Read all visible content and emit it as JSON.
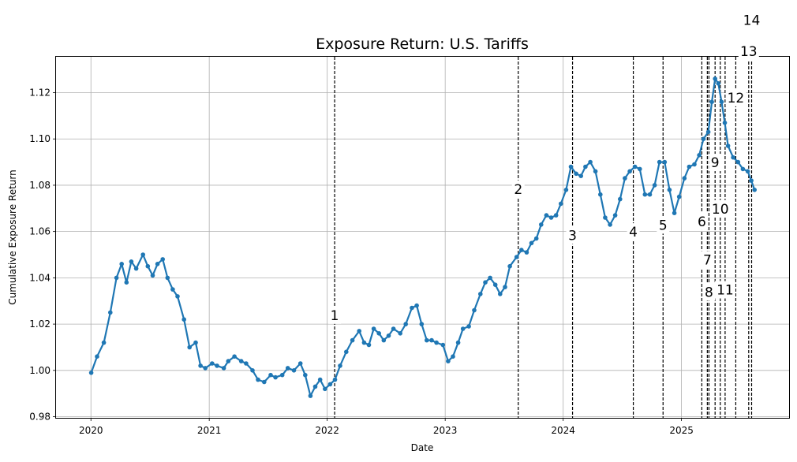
{
  "chart_data": {
    "type": "line",
    "title": "Exposure Return: U.S. Tariffs",
    "xlabel": "Date",
    "ylabel": "Cumulative Exposure Return",
    "xlim": [
      "2019-09-15",
      "2025-11-30"
    ],
    "ylim": [
      0.9795,
      1.1355
    ],
    "grid": true,
    "marker": "dot",
    "series_color": "#1f77b4",
    "event_line_color": "#000000",
    "x_ticks": [
      "2020-01-01",
      "2021-01-01",
      "2022-01-01",
      "2023-01-01",
      "2024-01-01",
      "2025-01-01"
    ],
    "x_tick_labels": [
      "2020",
      "2021",
      "2022",
      "2023",
      "2024",
      "2025"
    ],
    "y_ticks": [
      0.98,
      1.0,
      1.02,
      1.04,
      1.06,
      1.08,
      1.1,
      1.12
    ],
    "y_tick_labels": [
      "0.98",
      "1.00",
      "1.02",
      "1.04",
      "1.06",
      "1.08",
      "1.10",
      "1.12"
    ],
    "series": [
      {
        "x": [
          "2020-01-02",
          "2020-01-20",
          "2020-02-10",
          "2020-03-01",
          "2020-03-20",
          "2020-04-05",
          "2020-04-20",
          "2020-05-05",
          "2020-05-20",
          "2020-06-10",
          "2020-06-25",
          "2020-07-10",
          "2020-07-25",
          "2020-08-10",
          "2020-08-25",
          "2020-09-10",
          "2020-09-25",
          "2020-10-15",
          "2020-11-01",
          "2020-11-20",
          "2020-12-05",
          "2020-12-20",
          "2021-01-10",
          "2021-01-25",
          "2021-02-15",
          "2021-03-01",
          "2021-03-20",
          "2021-04-10",
          "2021-04-25",
          "2021-05-15",
          "2021-06-01",
          "2021-06-20",
          "2021-07-10",
          "2021-07-25",
          "2021-08-15",
          "2021-09-01",
          "2021-09-20",
          "2021-10-10",
          "2021-10-25",
          "2021-11-10",
          "2021-11-25",
          "2021-12-10",
          "2021-12-25",
          "2022-01-10",
          "2022-01-25",
          "2022-02-10",
          "2022-03-01",
          "2022-03-20",
          "2022-04-10",
          "2022-04-25",
          "2022-05-10",
          "2022-05-25",
          "2022-06-10",
          "2022-06-25",
          "2022-07-10",
          "2022-07-25",
          "2022-08-15",
          "2022-09-01",
          "2022-09-20",
          "2022-10-05",
          "2022-10-20",
          "2022-11-05",
          "2022-11-20",
          "2022-12-05",
          "2022-12-25",
          "2023-01-10",
          "2023-01-25",
          "2023-02-10",
          "2023-02-25",
          "2023-03-15",
          "2023-04-01",
          "2023-04-20",
          "2023-05-05",
          "2023-05-20",
          "2023-06-05",
          "2023-06-20",
          "2023-07-05",
          "2023-07-20",
          "2023-08-10",
          "2023-08-25",
          "2023-09-10",
          "2023-09-25",
          "2023-10-10",
          "2023-10-25",
          "2023-11-10",
          "2023-11-25",
          "2023-12-10",
          "2023-12-25",
          "2024-01-10",
          "2024-01-25",
          "2024-02-10",
          "2024-02-25",
          "2024-03-10",
          "2024-03-25",
          "2024-04-10",
          "2024-04-25",
          "2024-05-10",
          "2024-05-25",
          "2024-06-10",
          "2024-06-25",
          "2024-07-10",
          "2024-07-25",
          "2024-08-10",
          "2024-08-25",
          "2024-09-10",
          "2024-09-25",
          "2024-10-10",
          "2024-10-25",
          "2024-11-10",
          "2024-11-25",
          "2024-12-10",
          "2024-12-25",
          "2025-01-10",
          "2025-01-25",
          "2025-02-10",
          "2025-02-25",
          "2025-03-10",
          "2025-03-25",
          "2025-04-05",
          "2025-04-15",
          "2025-04-25",
          "2025-05-05",
          "2025-05-15",
          "2025-05-25",
          "2025-06-10",
          "2025-06-25",
          "2025-07-10",
          "2025-07-25",
          "2025-08-05",
          "2025-08-15"
        ],
        "y": [
          0.999,
          1.006,
          1.012,
          1.025,
          1.04,
          1.046,
          1.038,
          1.047,
          1.044,
          1.05,
          1.045,
          1.041,
          1.046,
          1.048,
          1.04,
          1.035,
          1.032,
          1.022,
          1.01,
          1.012,
          1.002,
          1.001,
          1.003,
          1.002,
          1.001,
          1.004,
          1.006,
          1.004,
          1.003,
          1.0,
          0.996,
          0.995,
          0.998,
          0.997,
          0.998,
          1.001,
          1.0,
          1.003,
          0.998,
          0.989,
          0.993,
          0.996,
          0.992,
          0.994,
          0.996,
          1.002,
          1.008,
          1.013,
          1.017,
          1.012,
          1.011,
          1.018,
          1.016,
          1.013,
          1.015,
          1.018,
          1.016,
          1.02,
          1.027,
          1.028,
          1.02,
          1.013,
          1.013,
          1.012,
          1.011,
          1.004,
          1.006,
          1.012,
          1.018,
          1.019,
          1.026,
          1.033,
          1.038,
          1.04,
          1.037,
          1.033,
          1.036,
          1.045,
          1.049,
          1.052,
          1.051,
          1.055,
          1.057,
          1.063,
          1.067,
          1.066,
          1.067,
          1.072,
          1.078,
          1.088,
          1.085,
          1.084,
          1.088,
          1.09,
          1.086,
          1.076,
          1.066,
          1.063,
          1.067,
          1.074,
          1.083,
          1.086,
          1.088,
          1.087,
          1.076,
          1.076,
          1.08,
          1.09,
          1.09,
          1.078,
          1.068,
          1.075,
          1.083,
          1.088,
          1.089,
          1.093,
          1.1,
          1.103,
          1.116,
          1.126,
          1.124,
          1.116,
          1.107,
          1.097,
          1.092,
          1.09,
          1.087,
          1.086,
          1.082,
          1.078
        ]
      }
    ],
    "events": [
      {
        "label": "1",
        "x": "2022-01-24",
        "label_y": 1.0235
      },
      {
        "label": "2",
        "x": "2023-08-15",
        "label_y": 1.078
      },
      {
        "label": "3",
        "x": "2024-01-30",
        "label_y": 1.058
      },
      {
        "label": "4",
        "x": "2024-08-05",
        "label_y": 1.0595
      },
      {
        "label": "5",
        "x": "2024-11-05",
        "label_y": 1.0625
      },
      {
        "label": "6",
        "x": "2025-03-05",
        "label_y": 1.064
      },
      {
        "label": "7",
        "x": "2025-03-22",
        "label_y": 1.0475
      },
      {
        "label": "8",
        "x": "2025-03-27",
        "label_y": 1.0335
      },
      {
        "label": "9",
        "x": "2025-04-15",
        "label_y": 1.0895
      },
      {
        "label": "10",
        "x": "2025-05-01",
        "label_y": 1.0695
      },
      {
        "label": "11",
        "x": "2025-05-16",
        "label_y": 1.0345
      },
      {
        "label": "12",
        "x": "2025-06-18",
        "label_y": 1.1175
      },
      {
        "label": "13",
        "x": "2025-07-28",
        "label_y": 1.1375
      },
      {
        "label": "14",
        "x": "2025-08-06",
        "label_y": 1.151
      }
    ]
  }
}
